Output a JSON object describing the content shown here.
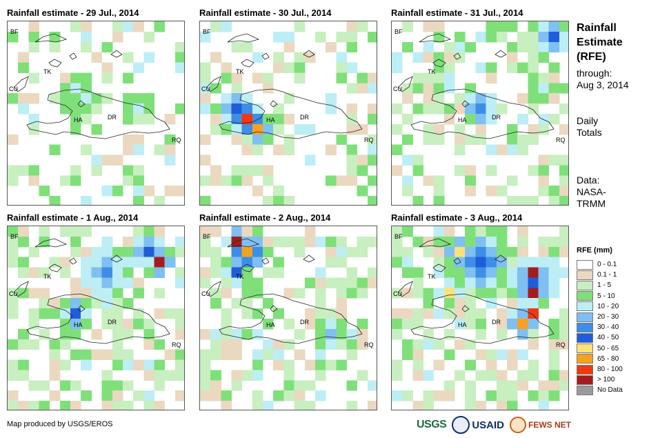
{
  "panels": [
    {
      "title": "Rainfall estimate - 29 Jul., 2014"
    },
    {
      "title": "Rainfall estimate - 30 Jul., 2014"
    },
    {
      "title": "Rainfall estimate - 31 Jul., 2014"
    },
    {
      "title": "Rainfall estimate - 1 Aug., 2014"
    },
    {
      "title": "Rainfall estimate - 2 Aug., 2014"
    },
    {
      "title": "Rainfall estimate - 3 Aug., 2014"
    }
  ],
  "map_labels": {
    "bf": "BF",
    "tk": "TK",
    "cu": "CU",
    "ha": "HA",
    "dr": "DR",
    "rq": "RQ"
  },
  "sidebar": {
    "title_lines": [
      "Rainfall",
      "Estimate",
      "(RFE)"
    ],
    "through_label": "through:",
    "through_date": "Aug 3, 2014",
    "daily_lines": [
      "Daily",
      "Totals"
    ],
    "data_lines": [
      "Data:",
      "NASA-",
      "TRMM"
    ]
  },
  "legend": {
    "title": "RFE (mm)",
    "items": [
      {
        "label": "0 - 0.1",
        "color": "#ffffff"
      },
      {
        "label": "0.1 - 1",
        "color": "#ead9c0"
      },
      {
        "label": "1 - 5",
        "color": "#c8efc0"
      },
      {
        "label": "5 - 10",
        "color": "#7fe07a"
      },
      {
        "label": "10 - 20",
        "color": "#bdeef5"
      },
      {
        "label": "20 - 30",
        "color": "#7fbff2"
      },
      {
        "label": "30 - 40",
        "color": "#3d8ee6"
      },
      {
        "label": "40 - 50",
        "color": "#1f5ed8"
      },
      {
        "label": "50 - 65",
        "color": "#fde17a"
      },
      {
        "label": "65 - 80",
        "color": "#f6a21e"
      },
      {
        "label": "80 - 100",
        "color": "#f2380f"
      },
      {
        "label": "> 100",
        "color": "#a61c1c"
      },
      {
        "label": "No Data",
        "color": "#9a9a9a"
      }
    ]
  },
  "footer": {
    "credit": "Map produced by USGS/EROS",
    "logos": {
      "usgs": "USGS",
      "usaid": "USAID",
      "fews": "FEWS NET"
    }
  }
}
